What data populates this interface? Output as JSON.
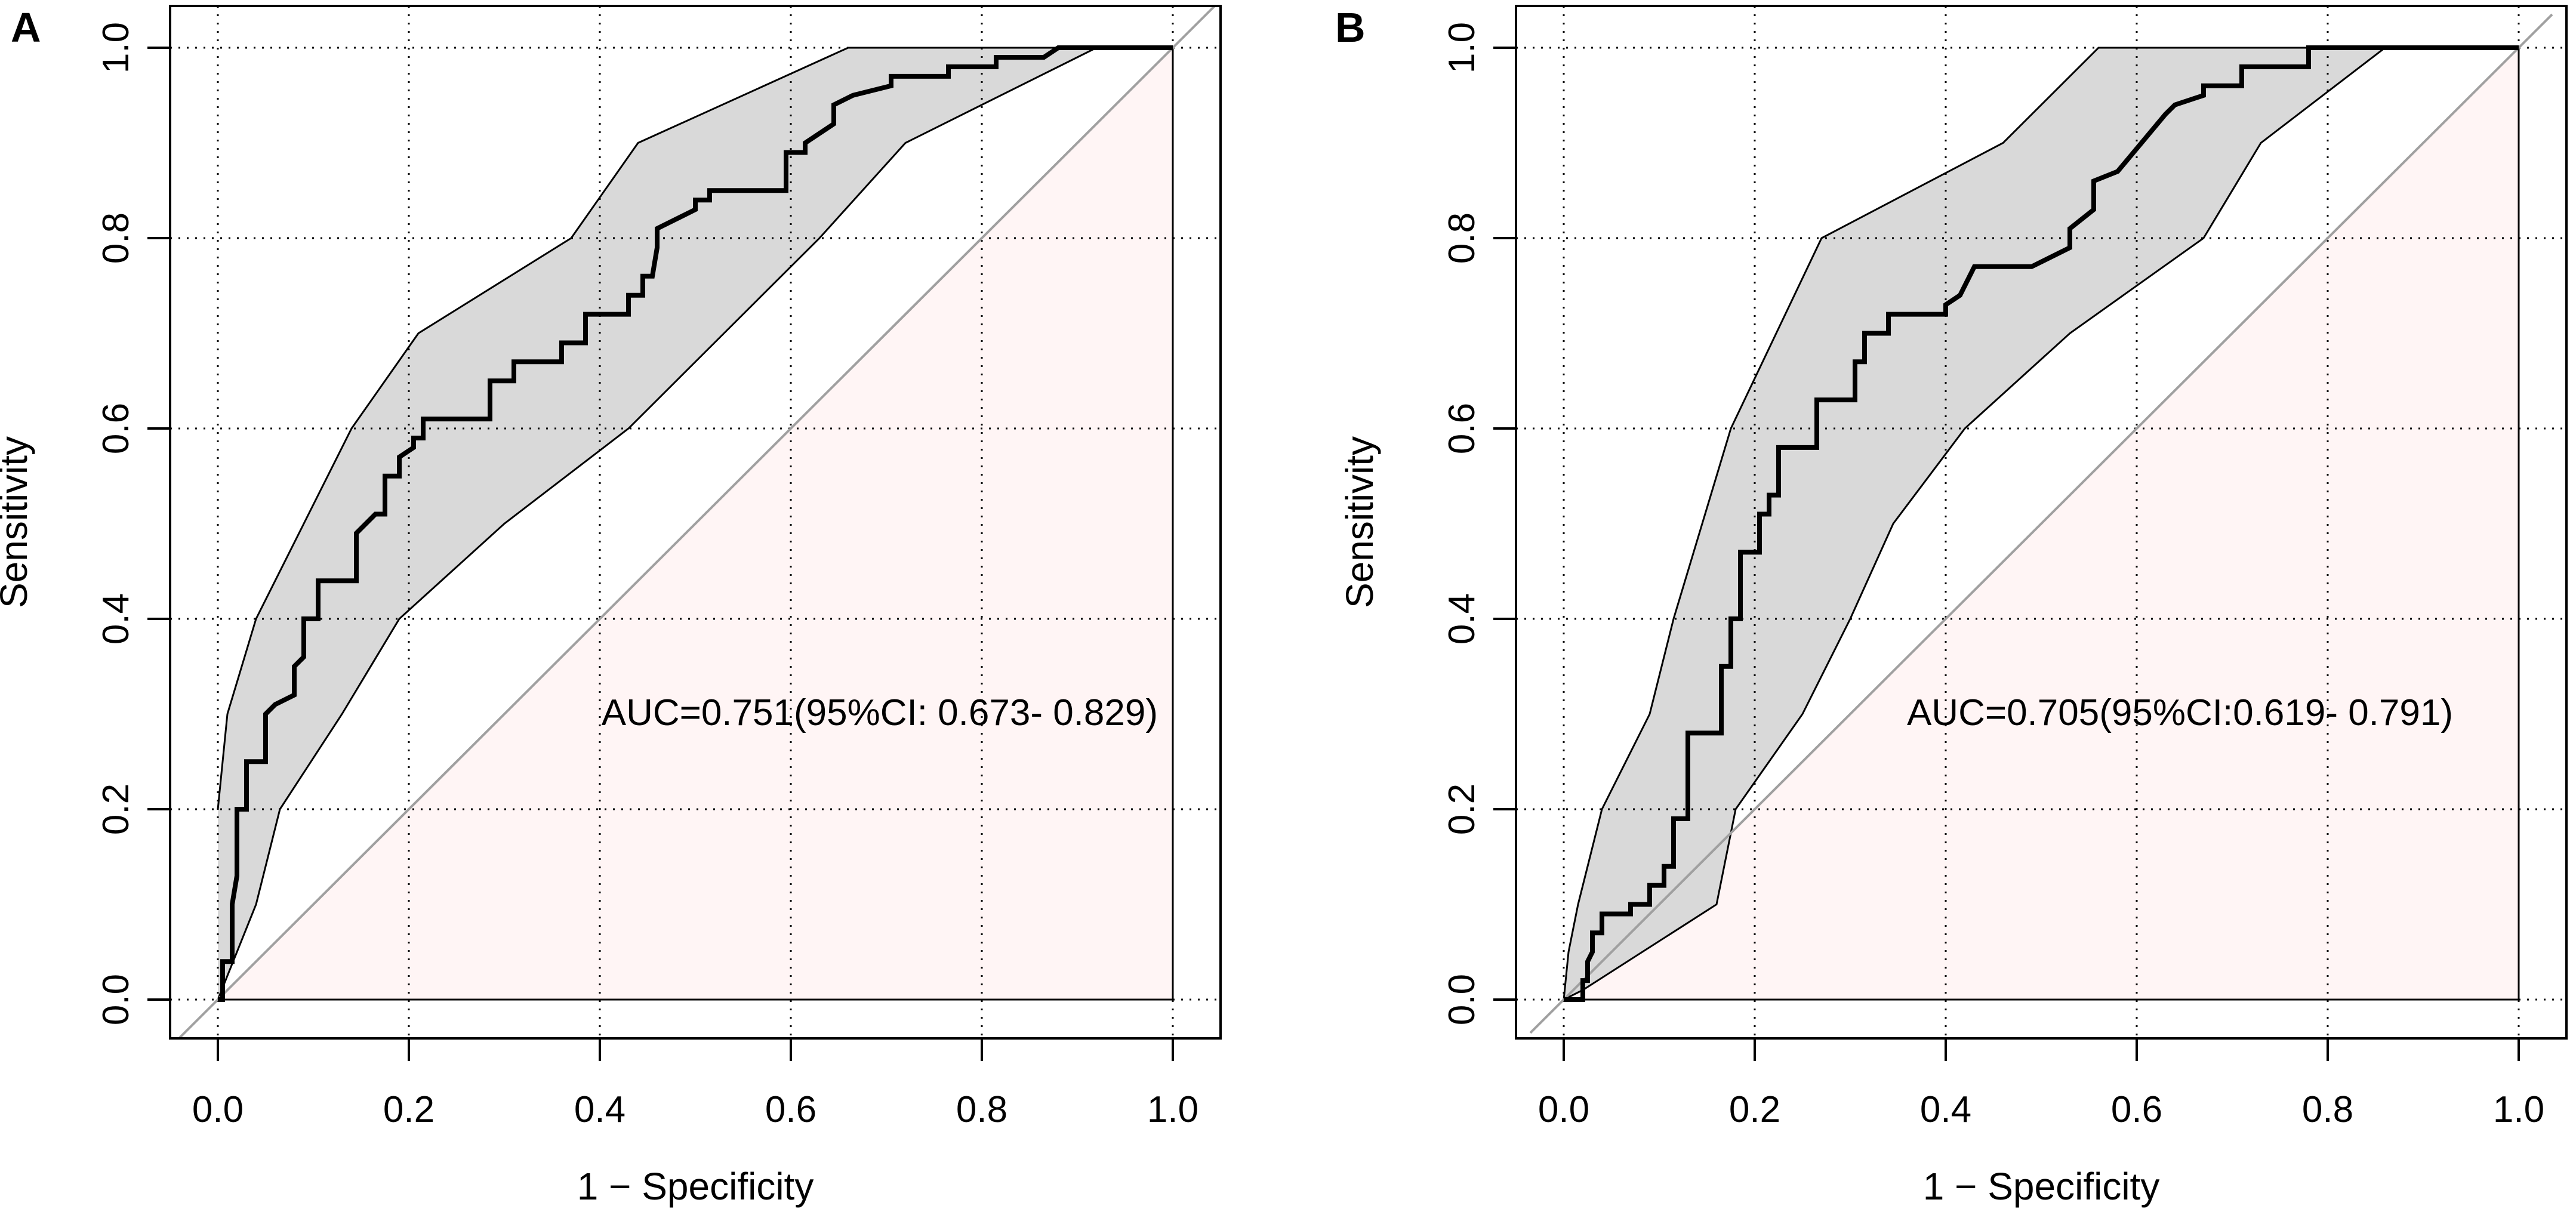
{
  "chart_data": [
    {
      "type": "line",
      "panel_label": "A",
      "title": "",
      "xlabel": "1 − Specificity",
      "ylabel": "Sensitivity",
      "xlim": [
        0,
        1
      ],
      "ylim": [
        0,
        1
      ],
      "grid": true,
      "x_ticks": [
        "0.0",
        "0.2",
        "0.4",
        "0.6",
        "0.8",
        "1.0"
      ],
      "y_ticks": [
        "0.0",
        "0.2",
        "0.4",
        "0.6",
        "0.8",
        "1.0"
      ],
      "annotation": "AUC=0.751(95%CI: 0.673- 0.829)",
      "auc": 0.751,
      "ci": [
        0.673,
        0.829
      ],
      "colors": {
        "ci_band": "#d9d9d9",
        "below_diagonal": "#fff5f5",
        "roc": "#000000",
        "diagonal": "#a0a0a0"
      },
      "series": [
        {
          "name": "ROC curve",
          "x": [
            0,
            0.005,
            0.005,
            0.015,
            0.015,
            0.02,
            0.02,
            0.03,
            0.03,
            0.05,
            0.05,
            0.06,
            0.08,
            0.08,
            0.09,
            0.09,
            0.105,
            0.105,
            0.145,
            0.145,
            0.165,
            0.175,
            0.175,
            0.19,
            0.19,
            0.205,
            0.205,
            0.215,
            0.215,
            0.285,
            0.285,
            0.31,
            0.31,
            0.36,
            0.36,
            0.385,
            0.385,
            0.43,
            0.43,
            0.445,
            0.445,
            0.455,
            0.46,
            0.46,
            0.5,
            0.5,
            0.515,
            0.515,
            0.595,
            0.595,
            0.615,
            0.615,
            0.645,
            0.645,
            0.665,
            0.705,
            0.705,
            0.765,
            0.765,
            0.815,
            0.815,
            0.865,
            0.88,
            0.88,
            1.0
          ],
          "y": [
            0,
            0,
            0.04,
            0.04,
            0.1,
            0.13,
            0.2,
            0.2,
            0.25,
            0.25,
            0.3,
            0.31,
            0.32,
            0.35,
            0.36,
            0.4,
            0.4,
            0.44,
            0.44,
            0.49,
            0.51,
            0.51,
            0.55,
            0.55,
            0.57,
            0.58,
            0.59,
            0.59,
            0.61,
            0.61,
            0.65,
            0.65,
            0.67,
            0.67,
            0.69,
            0.69,
            0.72,
            0.72,
            0.74,
            0.74,
            0.76,
            0.76,
            0.79,
            0.81,
            0.83,
            0.84,
            0.84,
            0.85,
            0.85,
            0.89,
            0.89,
            0.9,
            0.92,
            0.94,
            0.95,
            0.96,
            0.97,
            0.97,
            0.98,
            0.98,
            0.99,
            0.99,
            1.0,
            1.0,
            1.0
          ]
        },
        {
          "name": "CI upper",
          "x": [
            0,
            0.01,
            0.04,
            0.09,
            0.14,
            0.21,
            0.37,
            0.44,
            0.66,
            1.0
          ],
          "y": [
            0.2,
            0.3,
            0.4,
            0.5,
            0.6,
            0.7,
            0.8,
            0.9,
            1.0,
            1.0
          ]
        },
        {
          "name": "CI lower",
          "x": [
            0,
            0.04,
            0.065,
            0.13,
            0.19,
            0.3,
            0.43,
            0.53,
            0.63,
            0.72,
            0.92,
            1.0
          ],
          "y": [
            0,
            0.1,
            0.2,
            0.3,
            0.4,
            0.5,
            0.6,
            0.7,
            0.8,
            0.9,
            1.0,
            1.0
          ]
        },
        {
          "name": "Chance line",
          "x": [
            -0.05,
            1.05
          ],
          "y": [
            -0.05,
            1.05
          ]
        }
      ]
    },
    {
      "type": "line",
      "panel_label": "B",
      "title": "",
      "xlabel": "1 − Specificity",
      "ylabel": "Sensitivity",
      "xlim": [
        0,
        1
      ],
      "ylim": [
        0,
        1
      ],
      "grid": true,
      "x_ticks": [
        "0.0",
        "0.2",
        "0.4",
        "0.6",
        "0.8",
        "1.0"
      ],
      "y_ticks": [
        "0.0",
        "0.2",
        "0.4",
        "0.6",
        "0.8",
        "1.0"
      ],
      "annotation": "AUC=0.705(95%CI:0.619- 0.791)",
      "auc": 0.705,
      "ci": [
        0.619,
        0.791
      ],
      "colors": {
        "ci_band": "#d9d9d9",
        "below_diagonal": "#fff5f5",
        "roc": "#000000",
        "diagonal": "#a0a0a0"
      },
      "series": [
        {
          "name": "ROC curve",
          "x": [
            0,
            0.02,
            0.02,
            0.025,
            0.025,
            0.03,
            0.03,
            0.04,
            0.04,
            0.07,
            0.07,
            0.09,
            0.09,
            0.105,
            0.105,
            0.115,
            0.115,
            0.13,
            0.13,
            0.165,
            0.165,
            0.175,
            0.175,
            0.185,
            0.185,
            0.205,
            0.205,
            0.215,
            0.215,
            0.225,
            0.225,
            0.265,
            0.265,
            0.305,
            0.305,
            0.315,
            0.315,
            0.34,
            0.34,
            0.4,
            0.4,
            0.415,
            0.43,
            0.49,
            0.53,
            0.53,
            0.555,
            0.555,
            0.58,
            0.63,
            0.64,
            0.67,
            0.67,
            0.71,
            0.71,
            0.78,
            0.78,
            1.0
          ],
          "y": [
            0,
            0,
            0.02,
            0.02,
            0.04,
            0.05,
            0.07,
            0.07,
            0.09,
            0.09,
            0.1,
            0.1,
            0.12,
            0.12,
            0.14,
            0.14,
            0.19,
            0.19,
            0.28,
            0.28,
            0.35,
            0.35,
            0.4,
            0.4,
            0.47,
            0.47,
            0.51,
            0.51,
            0.53,
            0.53,
            0.58,
            0.58,
            0.63,
            0.63,
            0.67,
            0.67,
            0.7,
            0.7,
            0.72,
            0.72,
            0.73,
            0.74,
            0.77,
            0.77,
            0.79,
            0.81,
            0.83,
            0.86,
            0.87,
            0.93,
            0.94,
            0.95,
            0.96,
            0.96,
            0.98,
            0.98,
            1.0,
            1.0
          ]
        },
        {
          "name": "CI upper",
          "x": [
            0,
            0.005,
            0.015,
            0.04,
            0.09,
            0.115,
            0.175,
            0.27,
            0.46,
            0.56,
            1.0
          ],
          "y": [
            0,
            0.05,
            0.1,
            0.2,
            0.3,
            0.4,
            0.6,
            0.8,
            0.9,
            1.0,
            1.0
          ]
        },
        {
          "name": "CI lower",
          "x": [
            0,
            0.02,
            0.16,
            0.18,
            0.25,
            0.3,
            0.345,
            0.42,
            0.53,
            0.67,
            0.73,
            0.86,
            1.0
          ],
          "y": [
            0,
            0.01,
            0.1,
            0.2,
            0.3,
            0.4,
            0.5,
            0.6,
            0.7,
            0.8,
            0.9,
            1.0,
            1.0
          ]
        },
        {
          "name": "Chance line",
          "x": [
            -0.035,
            1.035
          ],
          "y": [
            -0.035,
            1.035
          ]
        }
      ]
    }
  ]
}
